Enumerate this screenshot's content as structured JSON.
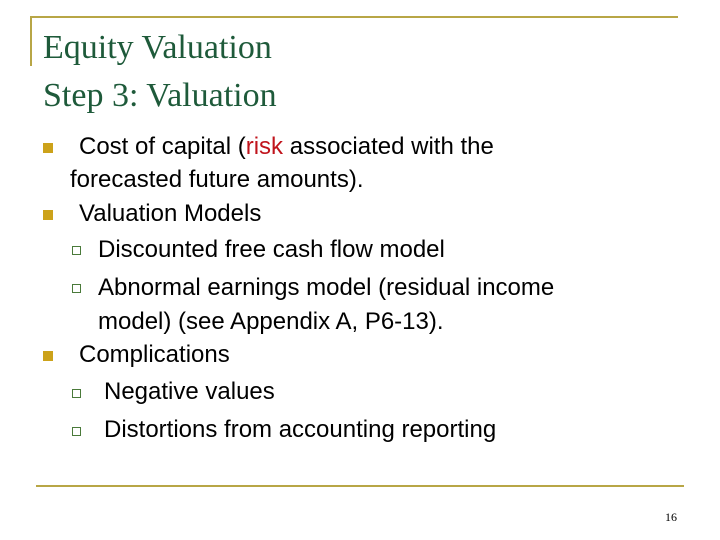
{
  "title": {
    "line1": "Equity Valuation",
    "line2": "Step 3: Valuation"
  },
  "bullets": [
    {
      "pre": "Cost of capital (",
      "highlight": "risk",
      "post": " associated with the",
      "cont": "forecasted future amounts)."
    },
    {
      "text": "Valuation Models",
      "sub": [
        "Discounted free cash flow model",
        "Abnormal earnings model (residual income",
        "model) (see Appendix A, P6-13)."
      ]
    },
    {
      "text": "Complications",
      "sub": [
        "Negative values",
        "Distortions from accounting reporting"
      ]
    }
  ],
  "page_number": "16",
  "colors": {
    "title": "#1e5a3a",
    "accent_rule": "#b8a646",
    "bullet": "#cca21a",
    "highlight": "#c0141c"
  }
}
